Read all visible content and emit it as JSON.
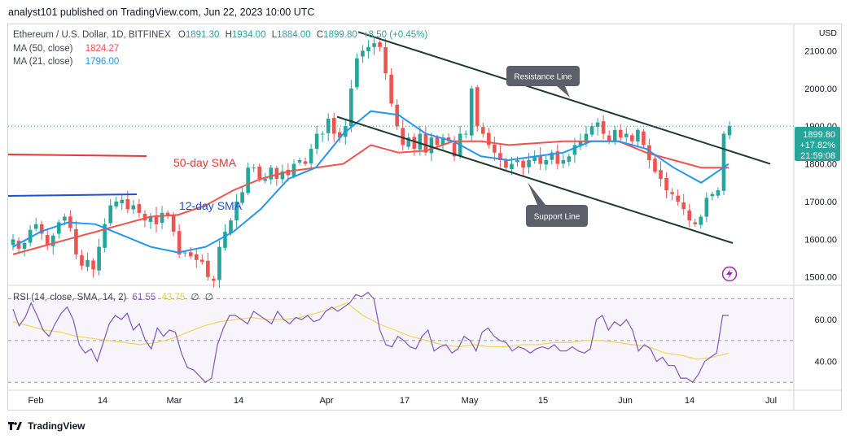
{
  "header": {
    "text": "analyst101 published on TradingView.com, Jun 22, 2023 10:00 UTC"
  },
  "legend": {
    "symbol": "Ethereum / U.S. Dollar, 1D, BITFINEX",
    "open_label": "O",
    "open": "1891.30",
    "high_label": "H",
    "high": "1934.00",
    "low_label": "L",
    "low": "1884.00",
    "close_label": "C",
    "close": "1899.80",
    "change": "+8.50 (+0.45%)",
    "ma50_label": "MA (50, close)",
    "ma50": "1824.27",
    "ma21_label": "MA (21, close)",
    "ma21": "1796.00"
  },
  "rsi_legend": {
    "label": "RSI (14, close, SMA, 14, 2)",
    "rsi": "61.55",
    "sma": "43.75",
    "na1": "∅",
    "na2": "∅"
  },
  "price_axis": {
    "currency": "USD",
    "last_price": "1899.80",
    "last_change": "+17.82%",
    "countdown": "21:59:08"
  },
  "annotations": {
    "resistance": "Resistance Line",
    "support": "Support Line",
    "sma50": "50-day SMA",
    "sma12": "12-day SMA"
  },
  "footer": {
    "brand": "TradingView"
  },
  "colors": {
    "up": "#26a69a",
    "down": "#ef5350",
    "ma50": "#ef5350",
    "ma21": "#2196f3",
    "rsi": "#7e57c2",
    "rsi_sma": "#f0d55a",
    "trend": "#1d3a33"
  },
  "chart_data": {
    "type": "candlestick",
    "title": "Ethereum / U.S. Dollar, 1D, BITFINEX",
    "price_axis": {
      "ylim": [
        1480,
        2170
      ],
      "ticks": [
        "1500.00",
        "1600.00",
        "1700.00",
        "1800.00",
        "1900.00",
        "2000.00",
        "2100.00"
      ]
    },
    "x_ticks": [
      "Feb",
      "14",
      "Mar",
      "14",
      "Apr",
      "17",
      "May",
      "15",
      "Jun",
      "14",
      "Jul"
    ],
    "rsi_axis": {
      "ylim": [
        27,
        76
      ],
      "ticks": [
        "40.00",
        "60.00"
      ],
      "bands": [
        30,
        50,
        70
      ]
    },
    "candles_anchor_close": [
      1600,
      1575,
      1590,
      1625,
      1640,
      1615,
      1585,
      1610,
      1645,
      1660,
      1630,
      1560,
      1530,
      1545,
      1520,
      1580,
      1640,
      1690,
      1700,
      1705,
      1680,
      1690,
      1670,
      1650,
      1660,
      1640,
      1670,
      1665,
      1620,
      1560,
      1565,
      1555,
      1545,
      1540,
      1500,
      1490,
      1580,
      1620,
      1650,
      1700,
      1725,
      1790,
      1790,
      1760,
      1760,
      1790,
      1760,
      1780,
      1770,
      1800,
      1810,
      1800,
      1840,
      1880,
      1880,
      1920,
      1880,
      1870,
      1900,
      2000,
      2080,
      2100,
      2110,
      2120,
      2110,
      2040,
      1960,
      1900,
      1850,
      1870,
      1840,
      1880,
      1830,
      1870,
      1850,
      1870,
      1860,
      1820,
      1880,
      1880,
      2000,
      1900,
      1880,
      1850,
      1830,
      1810,
      1790,
      1800,
      1810,
      1790,
      1810,
      1820,
      1800,
      1810,
      1830,
      1800,
      1810,
      1820,
      1850,
      1860,
      1880,
      1900,
      1910,
      1880,
      1860,
      1890,
      1870,
      1880,
      1860,
      1890,
      1850,
      1810,
      1780,
      1760,
      1730,
      1720,
      1700,
      1680,
      1650,
      1640,
      1660,
      1710,
      1720,
      1730,
      1880,
      1900
    ],
    "sma50_anchor": [
      1560,
      1580,
      1600,
      1620,
      1640,
      1660,
      1665,
      1690,
      1730,
      1760,
      1780,
      1790,
      1800,
      1850,
      1830,
      1835,
      1860,
      1860,
      1850,
      1855,
      1860,
      1860,
      1860,
      1830,
      1810,
      1790,
      1790
    ],
    "sma21_anchor": [
      1580,
      1620,
      1645,
      1640,
      1610,
      1580,
      1565,
      1580,
      1620,
      1680,
      1760,
      1790,
      1880,
      1940,
      1930,
      1880,
      1860,
      1820,
      1810,
      1820,
      1830,
      1860,
      1860,
      1840,
      1790,
      1750,
      1800
    ],
    "resistance_line": {
      "from": [
        440,
        2150
      ],
      "to": [
        946,
        1800
      ]
    },
    "support_line": {
      "from": [
        414,
        1925
      ],
      "to": [
        900,
        1590
      ]
    },
    "rsi_series": [
      65,
      57,
      61,
      68,
      62,
      55,
      52,
      58,
      63,
      66,
      60,
      48,
      44,
      46,
      40,
      49,
      58,
      62,
      60,
      63,
      55,
      58,
      50,
      46,
      56,
      52,
      55,
      54,
      44,
      37,
      36,
      33,
      30,
      32,
      48,
      56,
      62,
      62,
      60,
      58,
      64,
      62,
      60,
      58,
      64,
      60,
      58,
      61,
      60,
      62,
      59,
      60,
      64,
      66,
      64,
      66,
      68,
      72,
      71,
      73,
      70,
      55,
      48,
      47,
      52,
      50,
      47,
      46,
      52,
      55,
      45,
      47,
      48,
      44,
      46,
      52,
      50,
      45,
      54,
      56,
      52,
      50,
      49,
      45,
      47,
      46,
      44,
      46,
      47,
      46,
      48,
      45,
      45,
      47,
      45,
      44,
      46,
      60,
      62,
      55,
      59,
      57,
      60,
      55,
      45,
      48,
      46,
      40,
      42,
      38,
      38,
      32,
      32,
      30,
      34,
      40,
      42,
      44,
      62,
      62
    ],
    "rsi_sma_series": [
      59,
      57,
      55,
      54,
      52,
      51,
      50,
      49,
      48,
      49,
      51,
      54,
      57,
      59,
      60,
      61,
      60,
      60,
      61,
      63,
      65,
      68,
      62,
      58,
      55,
      52,
      50,
      48,
      47,
      48,
      47,
      47,
      48,
      48,
      49,
      49,
      50,
      50,
      49,
      48,
      47,
      44,
      43,
      41,
      42,
      44
    ]
  }
}
